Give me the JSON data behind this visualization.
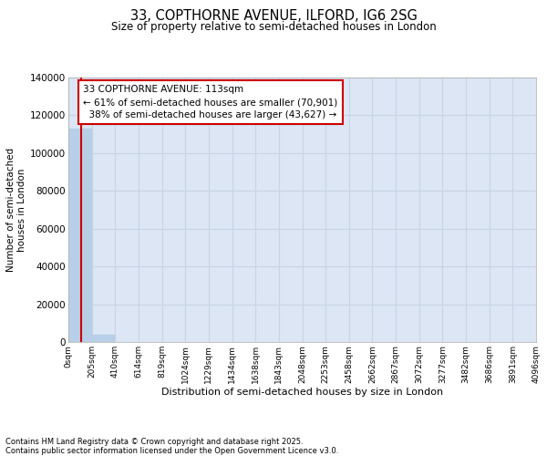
{
  "title": "33, COPTHORNE AVENUE, ILFORD, IG6 2SG",
  "subtitle": "Size of property relative to semi-detached houses in London",
  "xlabel": "Distribution of semi-detached houses by size in London",
  "ylabel": "Number of semi-detached\nhouses in London",
  "property_label": "33 COPTHORNE AVENUE: 113sqm",
  "pct_smaller": 61,
  "count_smaller": 70901,
  "pct_larger": 38,
  "count_larger": 43627,
  "bin_edges": [
    0,
    205,
    410,
    614,
    819,
    1024,
    1229,
    1434,
    1638,
    1843,
    2048,
    2253,
    2458,
    2662,
    2867,
    3072,
    3277,
    3482,
    3686,
    3891,
    4096
  ],
  "bar_heights": [
    113000,
    3800,
    0,
    0,
    0,
    0,
    0,
    0,
    0,
    0,
    0,
    0,
    0,
    0,
    0,
    0,
    0,
    0,
    0,
    0
  ],
  "bar_color": "#b8cfe8",
  "vline_color": "#cc0000",
  "vline_x": 113,
  "grid_color": "#c8d4e4",
  "background_color": "#dce6f4",
  "ylim": [
    0,
    140000
  ],
  "yticks": [
    0,
    20000,
    40000,
    60000,
    80000,
    100000,
    120000,
    140000
  ],
  "footer": "Contains HM Land Registry data © Crown copyright and database right 2025.\nContains public sector information licensed under the Open Government Licence v3.0.",
  "tick_labels": [
    "0sqm",
    "205sqm",
    "410sqm",
    "614sqm",
    "819sqm",
    "1024sqm",
    "1229sqm",
    "1434sqm",
    "1638sqm",
    "1843sqm",
    "2048sqm",
    "2253sqm",
    "2458sqm",
    "2662sqm",
    "2867sqm",
    "3072sqm",
    "3277sqm",
    "3482sqm",
    "3686sqm",
    "3891sqm",
    "4096sqm"
  ]
}
